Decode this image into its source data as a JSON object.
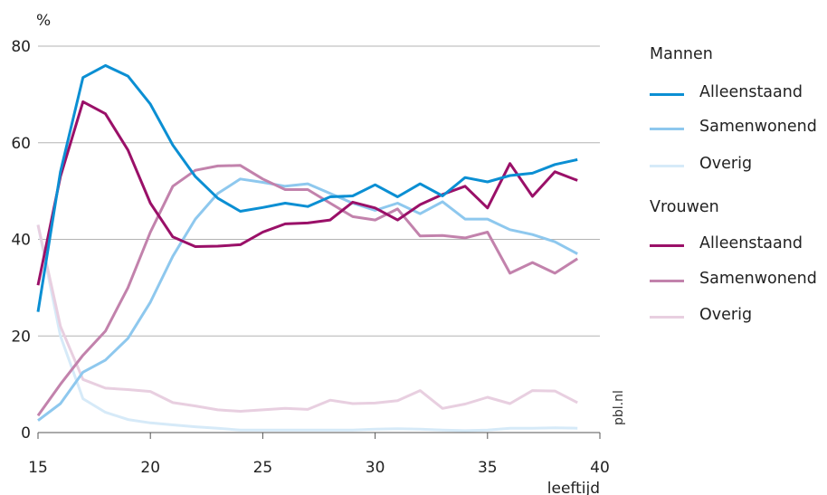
{
  "chart_data": {
    "type": "line",
    "ylabel": "%",
    "xlabel": "leeftijd",
    "xlim": [
      15,
      40
    ],
    "ylim": [
      0,
      80
    ],
    "xticks": [
      15,
      20,
      25,
      30,
      35,
      40
    ],
    "yticks": [
      0,
      20,
      40,
      60,
      80
    ],
    "grid": "horizontal",
    "legend_position": "right",
    "x": [
      15,
      16,
      17,
      18,
      19,
      20,
      21,
      22,
      23,
      24,
      25,
      26,
      27,
      28,
      29,
      30,
      31,
      32,
      33,
      34,
      35,
      36,
      37,
      38,
      39
    ],
    "legend_groups": [
      {
        "title": "Mannen",
        "series_indices": [
          0,
          1,
          2
        ]
      },
      {
        "title": "Vrouwen",
        "series_indices": [
          3,
          4,
          5
        ]
      }
    ],
    "series": [
      {
        "name": "Alleenstaand",
        "group": "Mannen",
        "color": "#0b8fd3",
        "values": [
          25,
          54,
          73.5,
          76,
          73.8,
          68,
          59.5,
          53,
          48.5,
          45.8,
          46.6,
          47.5,
          46.8,
          48.8,
          49,
          51.3,
          48.8,
          51.5,
          49,
          52.8,
          51.9,
          53.2,
          53.7,
          55.5,
          56.5
        ]
      },
      {
        "name": "Samenwonend",
        "group": "Mannen",
        "color": "#8ec8ee",
        "values": [
          2.5,
          6,
          12.5,
          15,
          19.5,
          27,
          36.5,
          44.2,
          49.5,
          52.5,
          51.8,
          51,
          51.5,
          49.5,
          47.5,
          46,
          47.5,
          45.3,
          47.8,
          44.2,
          44.2,
          42,
          41,
          39.5,
          37
        ]
      },
      {
        "name": "Overig",
        "group": "Mannen",
        "color": "#d6eaf8",
        "values": [
          43,
          20,
          7,
          4.2,
          2.7,
          2,
          1.6,
          1.2,
          0.9,
          0.5,
          0.5,
          0.5,
          0.5,
          0.5,
          0.5,
          0.7,
          0.8,
          0.7,
          0.5,
          0.4,
          0.5,
          0.9,
          0.9,
          1,
          0.9
        ]
      },
      {
        "name": "Alleenstaand",
        "group": "Vrouwen",
        "color": "#9a1068",
        "values": [
          30.5,
          53,
          68.5,
          66,
          58.5,
          47.5,
          40.5,
          38.5,
          38.6,
          38.9,
          41.5,
          43.2,
          43.4,
          44,
          47.7,
          46.5,
          44,
          47.2,
          49.3,
          51,
          46.5,
          55.7,
          48.9,
          54,
          52.2
        ]
      },
      {
        "name": "Samenwonend",
        "group": "Vrouwen",
        "color": "#c282ac",
        "values": [
          3.5,
          10,
          16,
          21,
          30,
          41.5,
          51,
          54.3,
          55.2,
          55.3,
          52.5,
          50.3,
          50.3,
          47.5,
          44.7,
          44,
          46.3,
          40.7,
          40.8,
          40.3,
          41.5,
          33,
          35.2,
          33,
          36
        ]
      },
      {
        "name": "Overig",
        "group": "Vrouwen",
        "color": "#e8cfe0",
        "values": [
          43,
          22,
          11,
          9.2,
          8.9,
          8.5,
          6.2,
          5.5,
          4.7,
          4.4,
          4.7,
          5,
          4.8,
          6.7,
          6,
          6.1,
          6.6,
          8.7,
          5,
          5.9,
          7.3,
          6,
          8.7,
          8.6,
          6.2
        ]
      }
    ]
  },
  "source_label": "pbl.nl"
}
